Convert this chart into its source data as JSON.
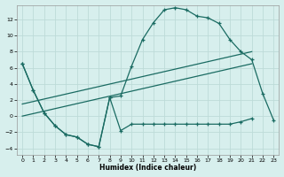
{
  "xlabel": "Humidex (Indice chaleur)",
  "background_color": "#d7efed",
  "grid_color": "#bddbd8",
  "line_color": "#1a6b62",
  "xlim": [
    -0.5,
    23.5
  ],
  "ylim": [
    -4.8,
    13.8
  ],
  "yticks": [
    -4,
    -2,
    0,
    2,
    4,
    6,
    8,
    10,
    12
  ],
  "xticks": [
    0,
    1,
    2,
    3,
    4,
    5,
    6,
    7,
    8,
    9,
    10,
    11,
    12,
    13,
    14,
    15,
    16,
    17,
    18,
    19,
    20,
    21,
    22,
    23
  ],
  "arch_x": [
    0,
    1,
    2,
    3,
    4,
    5,
    6,
    7,
    8,
    9,
    10,
    11,
    12,
    13,
    14,
    15,
    16,
    17,
    18,
    19,
    20,
    21,
    22,
    23
  ],
  "arch_y": [
    6.5,
    3.2,
    0.4,
    -1.2,
    -2.3,
    -2.6,
    -3.5,
    -3.8,
    2.3,
    2.5,
    6.2,
    9.5,
    11.6,
    13.2,
    13.45,
    13.2,
    12.4,
    12.2,
    11.5,
    9.5,
    8.0,
    7.0,
    2.8,
    -0.5
  ],
  "low_x": [
    0,
    1,
    2,
    3,
    4,
    5,
    6,
    7,
    8,
    9,
    10,
    11,
    12,
    13,
    14,
    15,
    16,
    17,
    18,
    19,
    20,
    21
  ],
  "low_y": [
    6.5,
    3.2,
    0.4,
    -1.2,
    -2.3,
    -2.6,
    -3.5,
    -3.8,
    2.3,
    -1.8,
    -1.0,
    -1.0,
    -1.0,
    -1.0,
    -1.0,
    -1.0,
    -1.0,
    -1.0,
    -1.0,
    -1.0,
    -0.7,
    -0.3
  ],
  "trend1_x": [
    0,
    21
  ],
  "trend1_y": [
    1.5,
    8.0
  ],
  "trend2_x": [
    0,
    21
  ],
  "trend2_y": [
    0.0,
    6.5
  ]
}
